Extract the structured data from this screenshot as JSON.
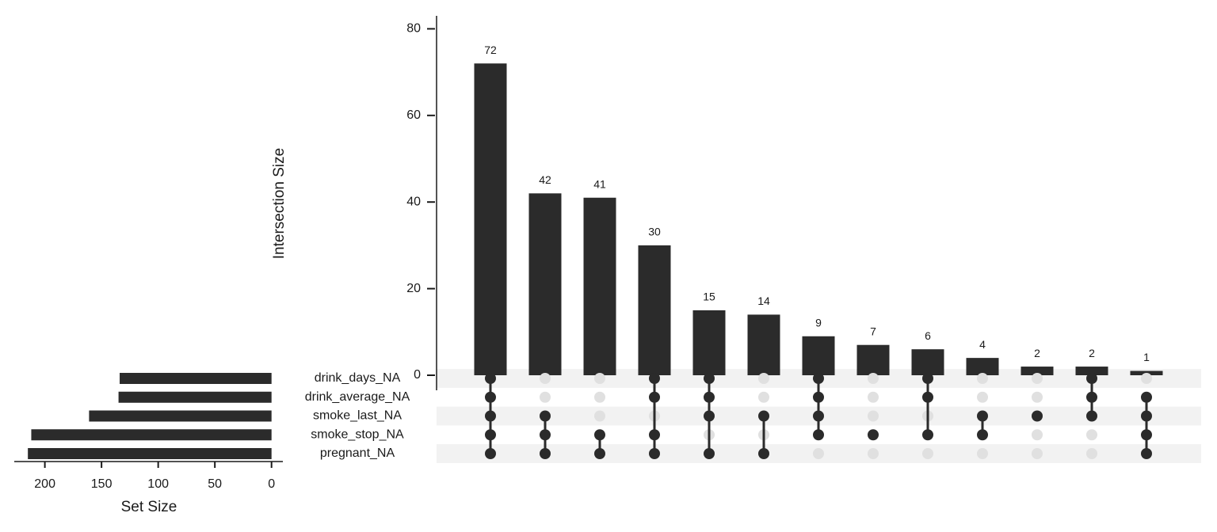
{
  "chart_data": {
    "type": "upset",
    "y_label": "Intersection Size",
    "x_label": "Set Size",
    "values": [
      72,
      42,
      41,
      30,
      15,
      14,
      9,
      7,
      6,
      4,
      2,
      2,
      1
    ],
    "ylim": [
      0,
      83
    ],
    "yticks": [
      0,
      20,
      40,
      60,
      80
    ],
    "sets": [
      "drink_days_NA",
      "drink_average_NA",
      "smoke_last_NA",
      "smoke_stop_NA",
      "pregnant_NA"
    ],
    "set_sizes": [
      134,
      135,
      161,
      212,
      215
    ],
    "xlim": [
      227,
      -10
    ],
    "xticks": [
      200,
      150,
      100,
      50,
      0
    ],
    "membership": [
      [
        true,
        true,
        true,
        true,
        true
      ],
      [
        false,
        false,
        true,
        true,
        true
      ],
      [
        false,
        false,
        false,
        true,
        true
      ],
      [
        true,
        true,
        false,
        true,
        true
      ],
      [
        true,
        true,
        true,
        false,
        true
      ],
      [
        false,
        false,
        true,
        false,
        true
      ],
      [
        true,
        true,
        true,
        true,
        false
      ],
      [
        false,
        false,
        false,
        true,
        false
      ],
      [
        true,
        true,
        false,
        true,
        false
      ],
      [
        false,
        false,
        true,
        true,
        false
      ],
      [
        false,
        false,
        true,
        false,
        false
      ],
      [
        true,
        true,
        true,
        false,
        false
      ],
      [
        false,
        true,
        true,
        true,
        true
      ]
    ],
    "color": "#2b2b2b",
    "inactive_color": "#e0e0e0",
    "stripe_color": "#f2f2f2"
  }
}
